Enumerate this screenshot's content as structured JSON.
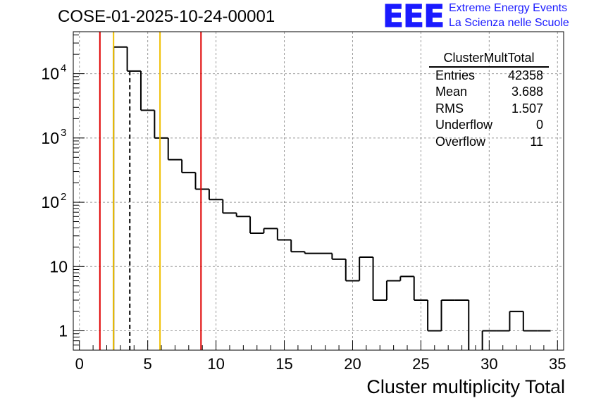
{
  "header": {
    "run_id": "COSE-01-2025-10-24-00001",
    "logo_text": "EEE",
    "logo_line1": "Extreme Energy Events",
    "logo_line2": "La Scienza nelle Scuole"
  },
  "stats_box": {
    "name": "ClusterMultTotal",
    "rows": [
      {
        "label": "Entries",
        "value": "42358"
      },
      {
        "label": "Mean",
        "value": "3.688"
      },
      {
        "label": "RMS",
        "value": "1.507"
      },
      {
        "label": "Underflow",
        "value": "0"
      },
      {
        "label": "Overflow",
        "value": "11"
      }
    ]
  },
  "chart_data": {
    "type": "histogram",
    "title": "COSE-01-2025-10-24-00001",
    "xlabel": "Cluster multiplicity Total",
    "ylabel": "",
    "xlim": [
      0,
      35
    ],
    "ylim": [
      0.5,
      45000
    ],
    "yscale": "log",
    "grid": true,
    "bin_width": 1,
    "bin_edges_start": -0.5,
    "bin_counts": [
      0,
      0,
      0,
      26000,
      11000,
      2700,
      1000,
      460,
      290,
      160,
      110,
      68,
      60,
      33,
      39,
      26,
      17,
      16,
      16,
      13,
      6,
      14,
      3,
      6,
      7,
      3,
      1,
      3,
      3,
      0,
      1,
      1,
      2,
      1,
      1
    ],
    "x_ticks": [
      "0",
      "5",
      "10",
      "15",
      "20",
      "25",
      "30",
      "35"
    ],
    "y_ticks": [
      {
        "value": 1,
        "label": "1"
      },
      {
        "value": 10,
        "label": "10"
      },
      {
        "value": 100,
        "label": "10",
        "exp": "2"
      },
      {
        "value": 1000,
        "label": "10",
        "exp": "3"
      },
      {
        "value": 10000,
        "label": "10",
        "exp": "4"
      }
    ],
    "vertical_lines": [
      {
        "x": 1.5,
        "color": "#e00000",
        "style": "solid"
      },
      {
        "x": 2.5,
        "color": "#f0c000",
        "style": "solid"
      },
      {
        "x": 3.688,
        "color": "#000000",
        "style": "dashed"
      },
      {
        "x": 5.9,
        "color": "#f0c000",
        "style": "solid"
      },
      {
        "x": 8.9,
        "color": "#e00000",
        "style": "solid"
      }
    ]
  }
}
